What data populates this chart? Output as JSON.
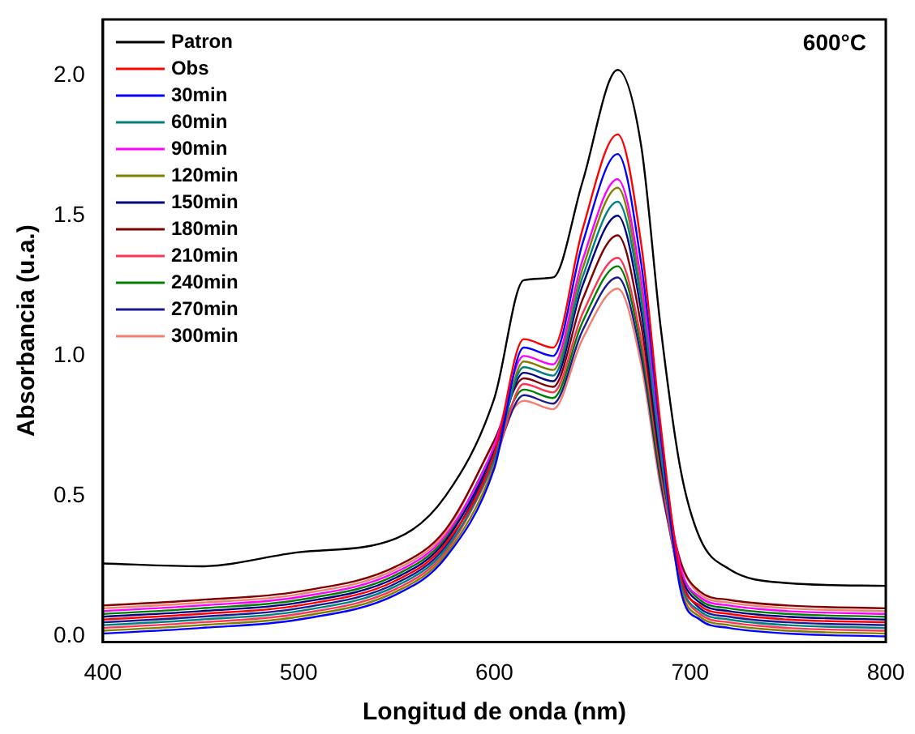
{
  "chart_data": {
    "type": "line",
    "xlabel": "Longitud de onda (nm)",
    "ylabel": "Absorbancia (u.a.)",
    "annotations": [
      "600°C"
    ],
    "x": [
      400,
      450,
      500,
      550,
      575,
      600,
      615,
      630,
      645,
      663,
      675,
      685,
      695,
      705,
      720,
      750,
      800
    ],
    "xlim": [
      400,
      800
    ],
    "xticks": [
      400,
      500,
      600,
      700,
      800
    ],
    "ylim": [
      -0.02,
      2.2
    ],
    "yticks": [
      {
        "value": 0,
        "label": "0.0"
      },
      {
        "value": 0.5,
        "label": "0.5"
      },
      {
        "value": 1,
        "label": "1.0"
      },
      {
        "value": 1.5,
        "label": "1.5"
      },
      {
        "value": 2,
        "label": "2.0"
      }
    ],
    "grid": false,
    "legend": "top left",
    "marker": "none",
    "line_style": "solid",
    "series": [
      {
        "name": "Patron",
        "color": "#000000",
        "values": [
          0.26,
          0.25,
          0.3,
          0.35,
          0.5,
          0.85,
          1.27,
          1.28,
          1.62,
          2.02,
          1.75,
          1.1,
          0.6,
          0.35,
          0.24,
          0.19,
          0.18
        ]
      },
      {
        "name": "Obs",
        "color": "#ff0000",
        "values": [
          0.06,
          0.08,
          0.11,
          0.2,
          0.33,
          0.65,
          1.06,
          1.03,
          1.45,
          1.79,
          1.4,
          0.75,
          0.22,
          0.11,
          0.08,
          0.06,
          0.05
        ]
      },
      {
        "name": "30min",
        "color": "#0000ff",
        "values": [
          0.01,
          0.03,
          0.06,
          0.15,
          0.28,
          0.6,
          1.03,
          1.0,
          1.4,
          1.72,
          1.33,
          0.72,
          0.17,
          0.06,
          0.03,
          0.01,
          0.0
        ]
      },
      {
        "name": "60min",
        "color": "#008080",
        "values": [
          0.04,
          0.06,
          0.09,
          0.18,
          0.31,
          0.63,
          0.96,
          0.93,
          1.28,
          1.55,
          1.2,
          0.65,
          0.2,
          0.09,
          0.06,
          0.04,
          0.03
        ]
      },
      {
        "name": "90min",
        "color": "#ff00ff",
        "values": [
          0.09,
          0.11,
          0.14,
          0.23,
          0.36,
          0.68,
          1.0,
          0.97,
          1.34,
          1.63,
          1.27,
          0.69,
          0.25,
          0.14,
          0.11,
          0.09,
          0.08
        ]
      },
      {
        "name": "120min",
        "color": "#808000",
        "values": [
          0.02,
          0.04,
          0.07,
          0.16,
          0.29,
          0.61,
          0.98,
          0.95,
          1.31,
          1.6,
          1.23,
          0.67,
          0.18,
          0.07,
          0.04,
          0.02,
          0.01
        ]
      },
      {
        "name": "150min",
        "color": "#000080",
        "values": [
          0.07,
          0.09,
          0.12,
          0.21,
          0.34,
          0.66,
          0.94,
          0.91,
          1.25,
          1.5,
          1.16,
          0.63,
          0.23,
          0.12,
          0.09,
          0.07,
          0.06
        ]
      },
      {
        "name": "180min",
        "color": "#800000",
        "values": [
          0.11,
          0.13,
          0.16,
          0.25,
          0.38,
          0.7,
          0.92,
          0.89,
          1.2,
          1.43,
          1.11,
          0.61,
          0.27,
          0.16,
          0.13,
          0.11,
          0.1
        ]
      },
      {
        "name": "210min",
        "color": "#ff3355",
        "values": [
          0.03,
          0.05,
          0.08,
          0.17,
          0.3,
          0.62,
          0.9,
          0.87,
          1.15,
          1.35,
          1.06,
          0.59,
          0.19,
          0.08,
          0.05,
          0.03,
          0.02
        ]
      },
      {
        "name": "240min",
        "color": "#008000",
        "values": [
          0.08,
          0.1,
          0.13,
          0.22,
          0.35,
          0.67,
          0.88,
          0.85,
          1.12,
          1.32,
          1.03,
          0.57,
          0.24,
          0.13,
          0.1,
          0.08,
          0.07
        ]
      },
      {
        "name": "270min",
        "color": "#1a1a90",
        "values": [
          0.05,
          0.07,
          0.1,
          0.19,
          0.32,
          0.64,
          0.86,
          0.83,
          1.09,
          1.28,
          1.0,
          0.55,
          0.21,
          0.1,
          0.07,
          0.05,
          0.04
        ]
      },
      {
        "name": "300min",
        "color": "#f08070",
        "values": [
          0.1,
          0.12,
          0.15,
          0.24,
          0.37,
          0.69,
          0.84,
          0.81,
          1.06,
          1.24,
          0.97,
          0.53,
          0.26,
          0.15,
          0.12,
          0.1,
          0.09
        ]
      }
    ]
  }
}
